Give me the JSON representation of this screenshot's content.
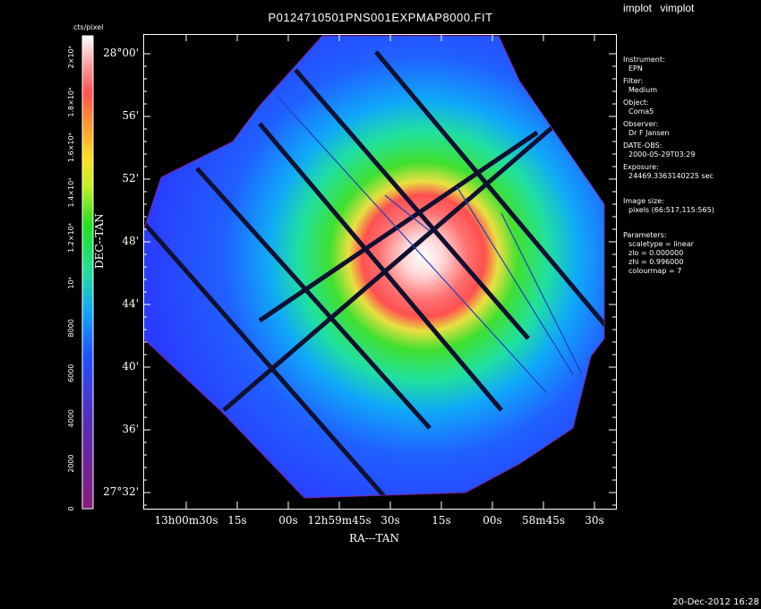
{
  "window": {
    "title": "P0124710501PNS001EXPMAP8000.FIT",
    "menu": [
      "implot",
      "vimplot"
    ]
  },
  "image_info": {
    "instrument_label": "Instrument:",
    "instrument": "EPN",
    "filter_label": "Filter:",
    "filter": "Medium",
    "object_label": "Object:",
    "object": "Coma5",
    "observer_label": "Observer:",
    "observer": "Dr F Jansen",
    "date_obs_label": "DATE-OBS:",
    "date_obs": "2000-05-29T03:29",
    "exposure_label": "Exposure:",
    "exposure": "24469.3363140225 sec",
    "image_size_label": "Image size:",
    "image_size": "pixels (66:517,115:565)",
    "parameters_label": "Parameters:",
    "scaletype": "scaletype = linear",
    "zlo": "zlo = 0.000000",
    "zhi": "zhi = 0.996000",
    "colourmap": "colourmap =   7"
  },
  "colorbar": {
    "unit_label": "cts/pixel",
    "ticks": [
      "0",
      "2000",
      "4000",
      "6000",
      "8000",
      "10⁴",
      "1.2×10⁴",
      "1.4×10⁴",
      "1.6×10⁴",
      "1.8×10⁴",
      "2×10⁴"
    ]
  },
  "axes": {
    "xlabel": "RA---TAN",
    "ylabel": "DEC--TAN",
    "x_ticks": [
      "13h00m30s",
      "15s",
      "00s",
      "12h59m45s",
      "30s",
      "15s",
      "00s",
      "58m45s",
      "30s"
    ],
    "y_ticks": [
      "28°00'",
      "56'",
      "52'",
      "48'",
      "44'",
      "40'",
      "36'",
      "27°32'"
    ]
  },
  "timestamp": "20-Dec-2012 16:28",
  "colors": {
    "background": "#000000",
    "text": "#ffffff"
  }
}
